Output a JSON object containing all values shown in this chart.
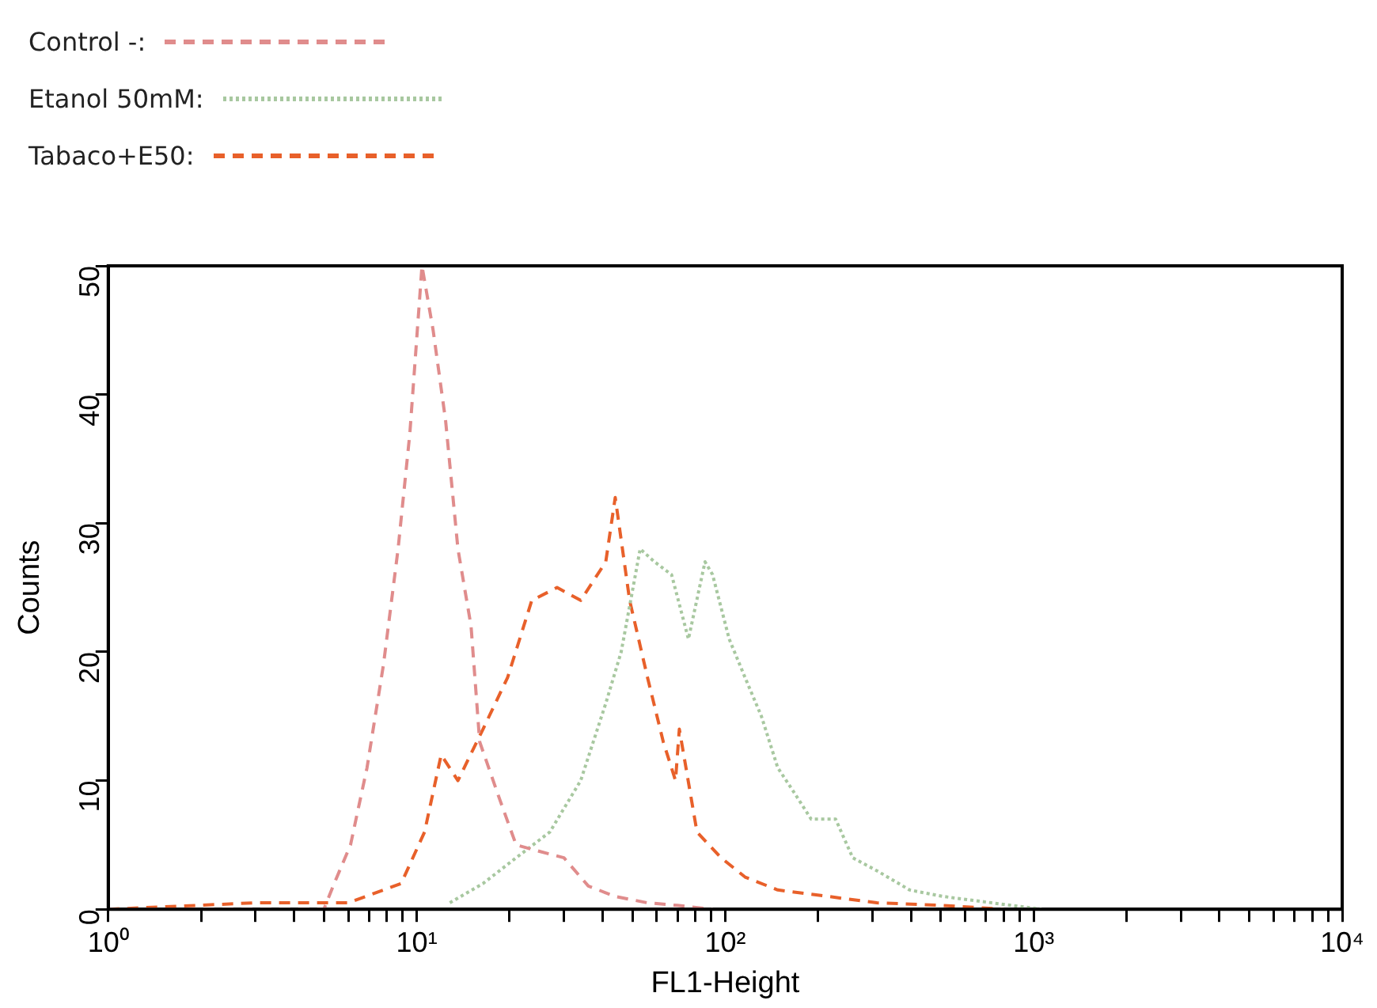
{
  "chart_data": {
    "type": "line",
    "xlabel": "FL1-Height",
    "ylabel": "Counts",
    "log": "x",
    "xlim": [
      1,
      10000
    ],
    "ylim": [
      0,
      50
    ],
    "xticks": [
      {
        "value": 1,
        "label": "10⁰"
      },
      {
        "value": 2,
        "label": null
      },
      {
        "value": 3,
        "label": null
      },
      {
        "value": 4,
        "label": null
      },
      {
        "value": 5,
        "label": null
      },
      {
        "value": 6,
        "label": null
      },
      {
        "value": 7,
        "label": null
      },
      {
        "value": 8,
        "label": null
      },
      {
        "value": 9,
        "label": null
      },
      {
        "value": 10,
        "label": "10¹"
      },
      {
        "value": 20,
        "label": null
      },
      {
        "value": 30,
        "label": null
      },
      {
        "value": 40,
        "label": null
      },
      {
        "value": 50,
        "label": null
      },
      {
        "value": 60,
        "label": null
      },
      {
        "value": 70,
        "label": null
      },
      {
        "value": 80,
        "label": null
      },
      {
        "value": 90,
        "label": null
      },
      {
        "value": 100,
        "label": "10²"
      },
      {
        "value": 200,
        "label": null
      },
      {
        "value": 300,
        "label": null
      },
      {
        "value": 400,
        "label": null
      },
      {
        "value": 500,
        "label": null
      },
      {
        "value": 600,
        "label": null
      },
      {
        "value": 700,
        "label": null
      },
      {
        "value": 800,
        "label": null
      },
      {
        "value": 900,
        "label": null
      },
      {
        "value": 1000,
        "label": "10³"
      },
      {
        "value": 2000,
        "label": null
      },
      {
        "value": 3000,
        "label": null
      },
      {
        "value": 4000,
        "label": null
      },
      {
        "value": 5000,
        "label": null
      },
      {
        "value": 6000,
        "label": null
      },
      {
        "value": 7000,
        "label": null
      },
      {
        "value": 8000,
        "label": null
      },
      {
        "value": 9000,
        "label": null
      },
      {
        "value": 10000,
        "label": "10⁴"
      }
    ],
    "yticks": [
      0,
      10,
      20,
      30,
      40,
      50
    ],
    "grid": false,
    "legend": "top left",
    "marker": "none",
    "series": [
      {
        "name": "Control -:",
        "color": "#e08c8c",
        "line_style": "dashed",
        "x": [
          1,
          3,
          5,
          5.4,
          6.1,
          6.9,
          7.8,
          8.7,
          9.5,
          10.4,
          11.3,
          12.4,
          13.6,
          15,
          16,
          18.6,
          21,
          25,
          30,
          36,
          44,
          56,
          70,
          91
        ],
        "values": [
          0,
          0,
          0,
          2,
          5,
          11,
          19,
          28,
          37,
          50,
          45,
          38,
          28,
          22,
          13,
          8.5,
          5,
          4.5,
          4,
          1.8,
          1,
          0.5,
          0.3,
          0
        ]
      },
      {
        "name": "Etanol 50mM:",
        "color": "#a8c8a0",
        "line_style": "dotted",
        "x": [
          12.8,
          16.4,
          21,
          27,
          34,
          41,
          46,
          53,
          59,
          67,
          76,
          86,
          91,
          103,
          116,
          131,
          148,
          168,
          190,
          228,
          259,
          310,
          396,
          507,
          731,
          1060
        ],
        "values": [
          0.5,
          2,
          4,
          6,
          10,
          16,
          20,
          28,
          27,
          26,
          21,
          27,
          26,
          21,
          18,
          15,
          11,
          9,
          7,
          7,
          4,
          3,
          1.5,
          1,
          0.5,
          0
        ]
      },
      {
        "name": "Tabaco+E50:",
        "color": "#e8602a",
        "line_style": "dashed",
        "x": [
          1,
          3,
          6,
          8.9,
          10.6,
          12,
          13.6,
          16.4,
          19.7,
          23.6,
          28.5,
          34,
          41,
          44,
          49,
          56,
          63,
          69,
          71,
          81,
          97,
          116,
          148,
          215,
          310,
          507,
          800
        ],
        "values": [
          0,
          0.5,
          0.5,
          2,
          6,
          12,
          10,
          14,
          18,
          24,
          25,
          24,
          27,
          32,
          24,
          18,
          13,
          10,
          14,
          6,
          4,
          2.5,
          1.5,
          1,
          0.5,
          0.3,
          0
        ]
      }
    ]
  }
}
